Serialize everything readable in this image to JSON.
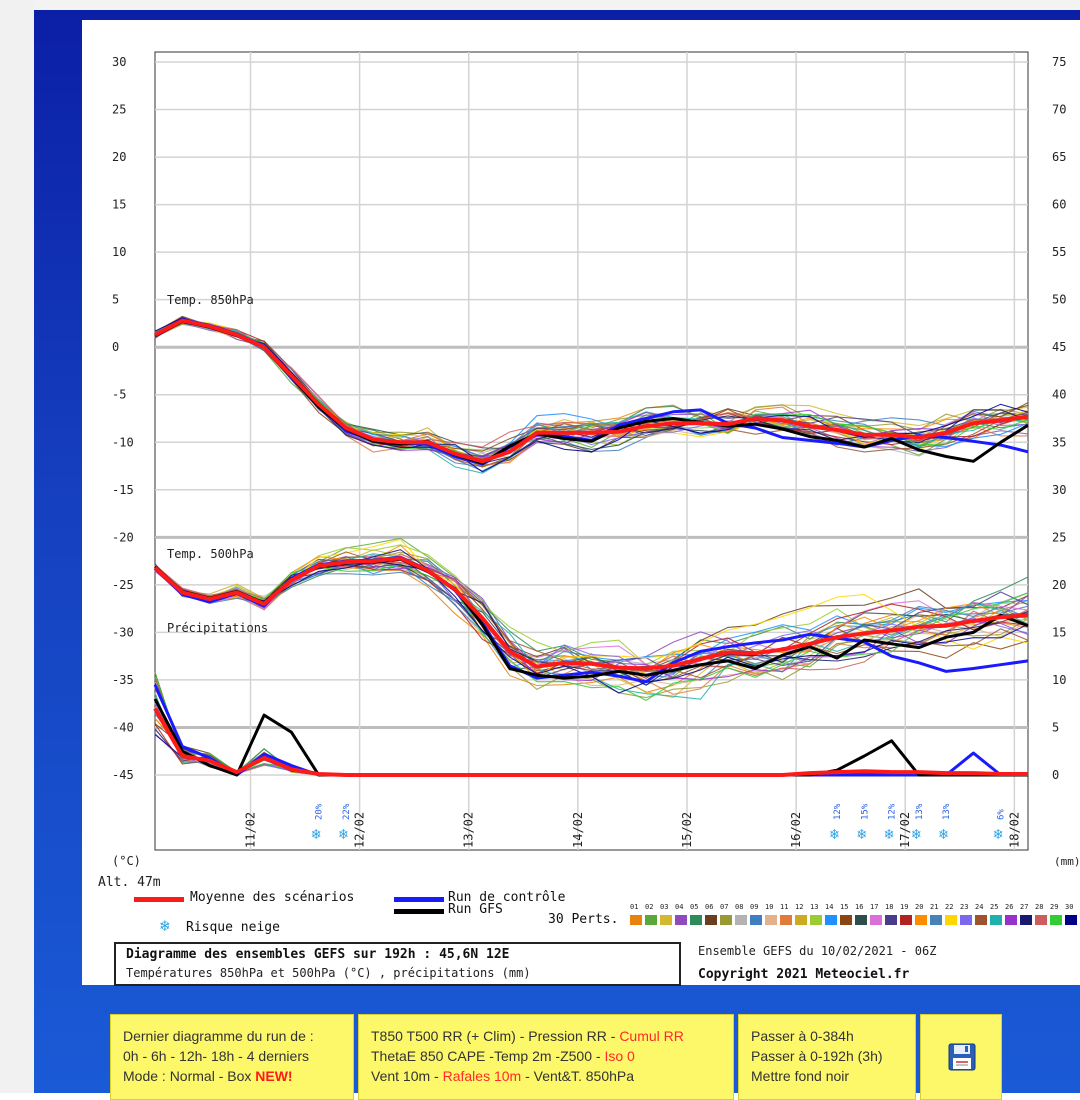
{
  "chart_data": {
    "type": "line",
    "title": "Diagramme des ensembles GEFS sur 192h : 45,6N 12E",
    "subtitle": "Températures 850hPa et 500hPa (°C) , précipitations (mm)",
    "run_info": "Ensemble GEFS du 10/02/2021 - 06Z",
    "copyright": "Copyright 2021 Meteociel.fr",
    "altitude": "Alt. 47m",
    "left_unit": "(°C)",
    "right_unit": "(mm)",
    "ylim": [
      -45,
      30
    ],
    "y2lim": [
      0,
      75
    ],
    "left_ticks": [
      "30",
      "25",
      "20",
      "15",
      "10",
      "5",
      "0",
      "-5",
      "-10",
      "-15",
      "-20",
      "-25",
      "-30",
      "-35",
      "-40",
      "-45"
    ],
    "right_ticks": [
      "75",
      "70",
      "65",
      "60",
      "55",
      "50",
      "45",
      "40",
      "35",
      "30",
      "25",
      "20",
      "15",
      "10",
      "5",
      "0"
    ],
    "x_ticks": [
      "11/02",
      "12/02",
      "13/02",
      "14/02",
      "15/02",
      "16/02",
      "17/02",
      "18/02"
    ],
    "panel_labels": {
      "t850": "Temp. 850hPa",
      "t500": "Temp. 500hPa",
      "precip": "Précipitations"
    },
    "xlim_hours": [
      0,
      192
    ],
    "series": [
      {
        "name": "Moyenne des scénarios",
        "variable": "t850",
        "color": "#ff1a1a",
        "x": [
          0,
          6,
          12,
          18,
          24,
          30,
          36,
          42,
          48,
          54,
          60,
          66,
          72,
          78,
          84,
          90,
          96,
          102,
          108,
          114,
          120,
          126,
          132,
          138,
          144,
          150,
          156,
          162,
          168,
          174,
          180,
          186,
          192
        ],
        "values": [
          1.3,
          2.8,
          2.2,
          1.3,
          0,
          -3,
          -6,
          -8.5,
          -9.7,
          -10,
          -10,
          -11.2,
          -12,
          -11,
          -9,
          -9,
          -9,
          -8.9,
          -8.3,
          -8,
          -8,
          -8.1,
          -7.5,
          -7.7,
          -8.3,
          -8.7,
          -9.2,
          -9.2,
          -9.5,
          -9,
          -8,
          -7.7,
          -7.3
        ]
      },
      {
        "name": "Run de contrôle",
        "variable": "t850",
        "color": "#1a1aff",
        "x": [
          0,
          6,
          12,
          18,
          24,
          30,
          36,
          42,
          48,
          54,
          60,
          66,
          72,
          78,
          84,
          90,
          96,
          102,
          108,
          114,
          120,
          126,
          132,
          138,
          144,
          150,
          156,
          162,
          168,
          174,
          180,
          186,
          192
        ],
        "values": [
          1.2,
          2.9,
          2.3,
          1.4,
          0.1,
          -3.2,
          -6.2,
          -8.8,
          -9.8,
          -10.1,
          -10.2,
          -11.5,
          -12.3,
          -10.5,
          -9.2,
          -9.4,
          -9.8,
          -8.2,
          -7.5,
          -6.8,
          -6.6,
          -8,
          -8.5,
          -9.5,
          -9.8,
          -10.1,
          -10.5,
          -9.8,
          -9.3,
          -9.5,
          -9.9,
          -10.3,
          -11
        ]
      },
      {
        "name": "Run GFS",
        "variable": "t850",
        "color": "#000000",
        "x": [
          0,
          6,
          12,
          18,
          24,
          30,
          36,
          42,
          48,
          54,
          60,
          66,
          72,
          78,
          84,
          90,
          96,
          102,
          108,
          114,
          120,
          126,
          132,
          138,
          144,
          150,
          156,
          162,
          168,
          174,
          180,
          186,
          192
        ],
        "values": [
          1.2,
          2.7,
          2.1,
          1.2,
          0,
          -3.1,
          -6.3,
          -8.6,
          -9.9,
          -10.2,
          -9.9,
          -11.3,
          -12.2,
          -10.4,
          -9.1,
          -9.6,
          -9.9,
          -8.5,
          -7.8,
          -7.5,
          -7.9,
          -8.3,
          -8.1,
          -8.6,
          -9.4,
          -9.8,
          -10.5,
          -9.6,
          -10.8,
          -11.5,
          -12,
          -10,
          -8.2
        ]
      },
      {
        "name": "Moyenne des scénarios",
        "variable": "t500",
        "color": "#ff1a1a",
        "x": [
          0,
          6,
          12,
          18,
          24,
          30,
          36,
          42,
          48,
          54,
          60,
          66,
          72,
          78,
          84,
          90,
          96,
          102,
          108,
          114,
          120,
          126,
          132,
          138,
          144,
          150,
          156,
          162,
          168,
          174,
          180,
          186,
          192
        ],
        "values": [
          -23.2,
          -25.8,
          -26.5,
          -25.8,
          -27,
          -24.5,
          -23,
          -22.6,
          -22.5,
          -22.2,
          -23.5,
          -25.5,
          -28.5,
          -32,
          -33.6,
          -33.2,
          -33.3,
          -33.7,
          -33.8,
          -33.5,
          -32.8,
          -32.1,
          -32.2,
          -31.8,
          -31.2,
          -30.5,
          -30.1,
          -29.8,
          -29.4,
          -29.3,
          -28.8,
          -28.4,
          -28.2
        ]
      },
      {
        "name": "Run de contrôle",
        "variable": "t500",
        "color": "#1a1aff",
        "x": [
          0,
          6,
          12,
          18,
          24,
          30,
          36,
          42,
          48,
          54,
          60,
          66,
          72,
          78,
          84,
          90,
          96,
          102,
          108,
          114,
          120,
          126,
          132,
          138,
          144,
          150,
          156,
          162,
          168,
          174,
          180,
          186,
          192
        ],
        "values": [
          -23.3,
          -26,
          -26.8,
          -25.9,
          -27.2,
          -24.3,
          -22.9,
          -22.5,
          -22.4,
          -22.1,
          -23.4,
          -25.6,
          -29,
          -33.5,
          -34.8,
          -34.5,
          -34.2,
          -34.6,
          -35.2,
          -33.2,
          -32,
          -31.5,
          -31.1,
          -30.8,
          -30.2,
          -30.6,
          -31,
          -32.5,
          -33.2,
          -34.1,
          -33.8,
          -33.4,
          -33
        ]
      },
      {
        "name": "Run GFS",
        "variable": "t500",
        "color": "#000000",
        "x": [
          0,
          6,
          12,
          18,
          24,
          30,
          36,
          42,
          48,
          54,
          60,
          66,
          72,
          78,
          84,
          90,
          96,
          102,
          108,
          114,
          120,
          126,
          132,
          138,
          144,
          150,
          156,
          162,
          168,
          174,
          180,
          186,
          192
        ],
        "values": [
          -23.1,
          -25.7,
          -26.4,
          -25.7,
          -26.9,
          -24.4,
          -23.1,
          -22.7,
          -22.6,
          -22.3,
          -23.6,
          -25.4,
          -29.2,
          -33.8,
          -34.5,
          -34.8,
          -34.6,
          -34.1,
          -34.5,
          -34,
          -33.4,
          -33,
          -33.8,
          -32.4,
          -31.5,
          -32.7,
          -30.8,
          -31.2,
          -31.6,
          -30.5,
          -30,
          -28.2,
          -29.3
        ]
      },
      {
        "name": "Moyenne des scénarios",
        "variable": "precip_mm",
        "color": "#ff1a1a",
        "x": [
          0,
          6,
          12,
          18,
          24,
          30,
          36,
          42,
          48,
          54,
          60,
          66,
          72,
          78,
          84,
          90,
          96,
          102,
          108,
          114,
          120,
          126,
          132,
          138,
          144,
          150,
          156,
          162,
          168,
          174,
          180,
          186,
          192
        ],
        "values": [
          7,
          2,
          1.5,
          0.3,
          1.8,
          0.6,
          0.1,
          0,
          0,
          0,
          0,
          0,
          0,
          0,
          0,
          0,
          0,
          0,
          0,
          0,
          0,
          0,
          0,
          0,
          0.2,
          0.3,
          0.4,
          0.3,
          0.3,
          0.2,
          0.2,
          0.1,
          0.1
        ]
      },
      {
        "name": "Run de contrôle",
        "variable": "precip_mm",
        "color": "#1a1aff",
        "x": [
          0,
          6,
          12,
          18,
          24,
          30,
          36,
          42,
          48,
          54,
          60,
          66,
          72,
          78,
          84,
          90,
          96,
          102,
          108,
          114,
          120,
          126,
          132,
          138,
          144,
          150,
          156,
          162,
          168,
          174,
          180,
          186,
          192
        ],
        "values": [
          9.5,
          3,
          1.8,
          0,
          2.2,
          1,
          0,
          0,
          0,
          0,
          0,
          0,
          0,
          0,
          0,
          0,
          0,
          0,
          0,
          0,
          0,
          0,
          0,
          0,
          0,
          0,
          0,
          0,
          0,
          0,
          2.3,
          0,
          0
        ]
      },
      {
        "name": "Run GFS",
        "variable": "precip_mm",
        "color": "#000000",
        "x": [
          0,
          6,
          12,
          18,
          24,
          30,
          36,
          42,
          48,
          54,
          60,
          66,
          72,
          78,
          84,
          90,
          96,
          102,
          108,
          114,
          120,
          126,
          132,
          138,
          144,
          150,
          156,
          162,
          168,
          174,
          180,
          186,
          192
        ],
        "values": [
          8,
          2.5,
          1,
          0,
          6.3,
          4.5,
          0,
          0,
          0,
          0,
          0,
          0,
          0,
          0,
          0,
          0,
          0,
          0,
          0,
          0,
          0,
          0,
          0,
          0,
          0,
          0.5,
          2,
          3.6,
          0,
          0,
          0,
          0,
          0
        ]
      }
    ],
    "perturbations_label": "30 Perts.",
    "perturbation_ids": [
      "01",
      "02",
      "03",
      "04",
      "05",
      "06",
      "07",
      "08",
      "09",
      "10",
      "11",
      "12",
      "13",
      "14",
      "15",
      "16",
      "17",
      "18",
      "19",
      "20",
      "21",
      "22",
      "23",
      "24",
      "25",
      "26",
      "27",
      "28",
      "29",
      "30"
    ],
    "perturbation_colors": [
      "#e8820c",
      "#59a839",
      "#d6b82e",
      "#8e4bbf",
      "#2e8b57",
      "#6b3e1f",
      "#999933",
      "#b3b3b3",
      "#3f7fbf",
      "#e3b28a",
      "#e07b39",
      "#ccaa22",
      "#9acd32",
      "#1e90ff",
      "#8b4513",
      "#2f4f4f",
      "#da70d6",
      "#483d8b",
      "#b22222",
      "#ff8c00",
      "#4682b4",
      "#ffd700",
      "#7b68ee",
      "#a0522d",
      "#20b2aa",
      "#9932cc",
      "#191970",
      "#cd5c5c",
      "#32cd32",
      "#00008b"
    ],
    "snow_risk": [
      {
        "hour": 36,
        "label": "20%"
      },
      {
        "hour": 42,
        "label": "22%"
      },
      {
        "hour": 150,
        "label": "12%"
      },
      {
        "hour": 156,
        "label": "15%"
      },
      {
        "hour": 162,
        "label": "12%"
      },
      {
        "hour": 168,
        "label": "13%"
      },
      {
        "hour": 174,
        "label": "13%"
      },
      {
        "hour": 186,
        "label": "6%"
      }
    ],
    "legend": {
      "mean": "Moyenne des scénarios",
      "control": "Run de contrôle",
      "gfs": "Run GFS",
      "snow": "Risque neige"
    }
  },
  "nav": {
    "box1": [
      "Dernier diagramme du run de :",
      "0h - 6h - 12h- 18h - 4 derniers",
      "Mode : Normal - Box "
    ],
    "box1_new": "NEW!",
    "box2_l1": "T850 T500 RR (+ Clim) - Pression RR - ",
    "box2_l1_red": "Cumul RR",
    "box2_l2": "ThetaE 850 CAPE -Temp 2m -Z500 - ",
    "box2_l2_red": "Iso 0",
    "box2_l3a": "Vent 10m - ",
    "box2_l3_red": "Rafales 10m",
    "box2_l3b": " - Vent&T. 850hPa",
    "box3": [
      "Passer à 0-384h",
      "Passer à 0-192h (3h)",
      "Mettre fond noir"
    ],
    "save_icon": "floppy-disk-icon"
  }
}
